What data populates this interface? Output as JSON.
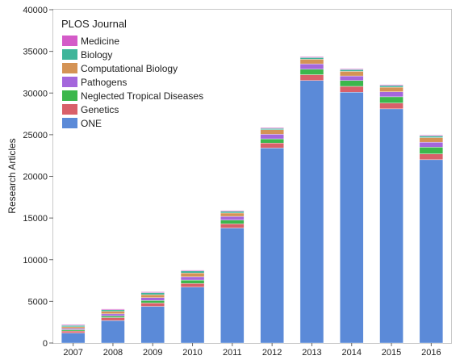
{
  "chart_data": {
    "type": "bar",
    "stacked": true,
    "categories": [
      "2007",
      "2008",
      "2009",
      "2010",
      "2011",
      "2012",
      "2013",
      "2014",
      "2015",
      "2016"
    ],
    "ylabel": "Research Articles",
    "xlabel": "",
    "ylim": [
      0,
      40000
    ],
    "yticks": [
      0,
      5000,
      10000,
      15000,
      20000,
      25000,
      30000,
      35000,
      40000
    ],
    "grid": false,
    "legend": {
      "title": "PLOS Journal",
      "placement": "top-left",
      "order": [
        "Medicine",
        "Biology",
        "Computational Biology",
        "Pathogens",
        "Neglected Tropical Diseases",
        "Genetics",
        "ONE"
      ]
    },
    "series": [
      {
        "name": "ONE",
        "color": "#5b8ad8",
        "values": [
          1200,
          2700,
          4400,
          6700,
          13800,
          23400,
          31500,
          30100,
          28100,
          22000
        ]
      },
      {
        "name": "Genetics",
        "color": "#d9606a",
        "values": [
          250,
          350,
          400,
          450,
          500,
          600,
          700,
          700,
          700,
          700
        ]
      },
      {
        "name": "Neglected Tropical Diseases",
        "color": "#3cb74c",
        "values": [
          150,
          200,
          300,
          400,
          450,
          500,
          650,
          700,
          750,
          800
        ]
      },
      {
        "name": "Pathogens",
        "color": "#a466dc",
        "values": [
          150,
          250,
          350,
          400,
          450,
          550,
          650,
          550,
          600,
          600
        ]
      },
      {
        "name": "Computational Biology",
        "color": "#d49355",
        "values": [
          200,
          300,
          350,
          450,
          400,
          550,
          550,
          550,
          550,
          550
        ]
      },
      {
        "name": "Biology",
        "color": "#3fb59a",
        "values": [
          150,
          200,
          250,
          250,
          200,
          150,
          200,
          200,
          200,
          200
        ]
      },
      {
        "name": "Medicine",
        "color": "#d45bc8",
        "values": [
          100,
          100,
          100,
          100,
          100,
          100,
          100,
          100,
          100,
          100
        ]
      }
    ]
  }
}
